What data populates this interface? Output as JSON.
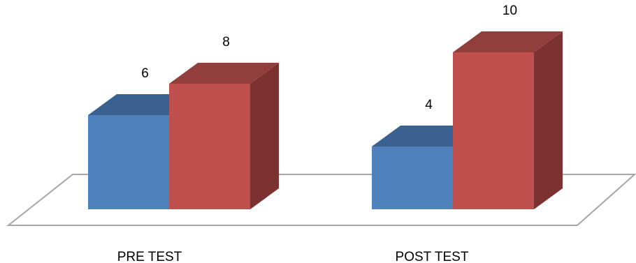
{
  "chart_data": {
    "type": "bar",
    "style": "3d-column",
    "categories": [
      "PRE TEST",
      "POST TEST"
    ],
    "series": [
      {
        "values": [
          6,
          4
        ]
      },
      {
        "values": [
          8,
          10
        ]
      }
    ],
    "data_labels": true,
    "ylim": [
      0,
      10
    ],
    "grid": false,
    "legend": "none",
    "colors": {
      "series_0": {
        "front": "#4F81BD",
        "top": "#3B6190",
        "side": "#2F4E75"
      },
      "series_1": {
        "front": "#C0504D",
        "top": "#923E3C",
        "side": "#7C3230"
      },
      "floor_stroke": "#A6A6A6"
    }
  }
}
